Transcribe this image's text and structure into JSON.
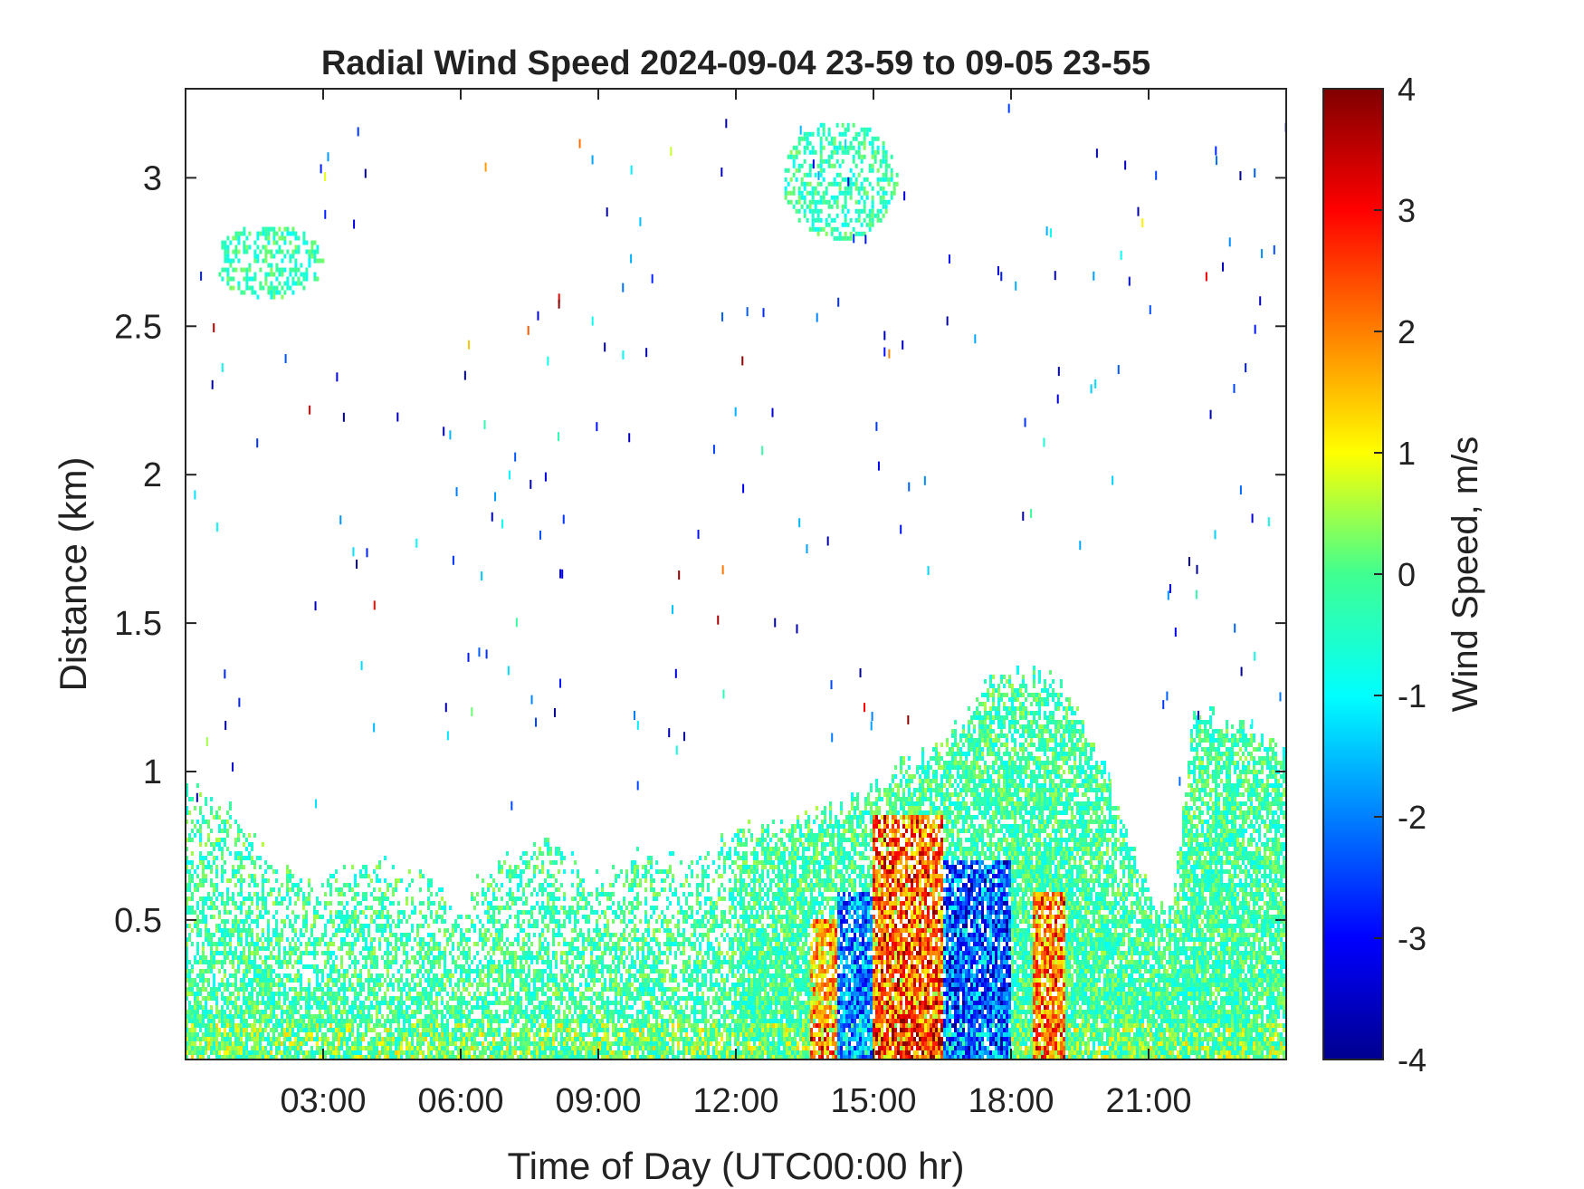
{
  "chart_data": {
    "type": "heatmap",
    "title": "Radial Wind Speed 2024-09-04 23-59 to 09-05 23-55",
    "xlabel": "Time of Day (UTC00:00 hr)",
    "ylabel": "Distance (km)",
    "xlim_hours": [
      0,
      24
    ],
    "ylim_km": [
      0.03,
      3.3
    ],
    "x_ticks": [
      {
        "hour": 3,
        "label": "03:00"
      },
      {
        "hour": 6,
        "label": "06:00"
      },
      {
        "hour": 9,
        "label": "09:00"
      },
      {
        "hour": 12,
        "label": "12:00"
      },
      {
        "hour": 15,
        "label": "15:00"
      },
      {
        "hour": 18,
        "label": "18:00"
      },
      {
        "hour": 21,
        "label": "21:00"
      }
    ],
    "y_ticks": [
      {
        "km": 0.5,
        "label": "0.5"
      },
      {
        "km": 1,
        "label": "1"
      },
      {
        "km": 1.5,
        "label": "1.5"
      },
      {
        "km": 2,
        "label": "2"
      },
      {
        "km": 2.5,
        "label": "2.5"
      },
      {
        "km": 3,
        "label": "3"
      }
    ],
    "colorbar": {
      "label": "Wind Speed, m/s",
      "colormap": "jet",
      "range": [
        -4,
        4
      ],
      "ticks": [
        {
          "value": 4,
          "label": "4"
        },
        {
          "value": 3,
          "label": "3"
        },
        {
          "value": 2,
          "label": "2"
        },
        {
          "value": 1,
          "label": "1"
        },
        {
          "value": 0,
          "label": "0"
        },
        {
          "value": -1,
          "label": "-1"
        },
        {
          "value": -2,
          "label": "-2"
        },
        {
          "value": -3,
          "label": "-3"
        },
        {
          "value": -4,
          "label": "-4"
        }
      ]
    },
    "data_top_profile_km": [
      [
        0.0,
        0.95
      ],
      [
        0.5,
        0.9
      ],
      [
        1.0,
        0.85
      ],
      [
        1.5,
        0.75
      ],
      [
        2.0,
        0.68
      ],
      [
        3.0,
        0.62
      ],
      [
        4.0,
        0.68
      ],
      [
        5.0,
        0.68
      ],
      [
        6.0,
        0.55
      ],
      [
        7.0,
        0.72
      ],
      [
        8.0,
        0.78
      ],
      [
        9.0,
        0.62
      ],
      [
        10.0,
        0.72
      ],
      [
        11.0,
        0.68
      ],
      [
        12.0,
        0.8
      ],
      [
        13.0,
        0.8
      ],
      [
        14.0,
        0.85
      ],
      [
        15.0,
        0.92
      ],
      [
        16.0,
        1.05
      ],
      [
        17.0,
        1.15
      ],
      [
        17.5,
        1.3
      ],
      [
        18.0,
        1.32
      ],
      [
        19.0,
        1.3
      ],
      [
        19.5,
        1.2
      ],
      [
        20.0,
        1.0
      ],
      [
        21.0,
        0.6
      ],
      [
        21.5,
        0.5
      ],
      [
        22.0,
        1.2
      ],
      [
        23.0,
        1.15
      ],
      [
        24.0,
        1.05
      ]
    ],
    "aloft_patches": [
      {
        "hour_start": 0.6,
        "hour_end": 3.0,
        "km_low": 2.6,
        "km_high": 2.85,
        "speed_ms": -0.3
      },
      {
        "hour_start": 13.0,
        "hour_end": 15.5,
        "km_low": 2.8,
        "km_high": 3.2,
        "speed_ms": -0.3
      }
    ],
    "strong_positive_bands": [
      {
        "hour_start": 15.0,
        "hour_end": 16.5,
        "km_high": 0.85,
        "peak_ms": 3.5
      },
      {
        "hour_start": 18.5,
        "hour_end": 19.2,
        "km_high": 0.6,
        "peak_ms": 3.0
      },
      {
        "hour_start": 13.6,
        "hour_end": 14.2,
        "km_high": 0.5,
        "peak_ms": 2.5
      }
    ],
    "strong_negative_bands": [
      {
        "hour_start": 16.5,
        "hour_end": 18.0,
        "km_high": 0.7,
        "peak_ms": -3.0
      },
      {
        "hour_start": 14.2,
        "hour_end": 15.0,
        "km_high": 0.6,
        "peak_ms": -2.5
      }
    ]
  }
}
